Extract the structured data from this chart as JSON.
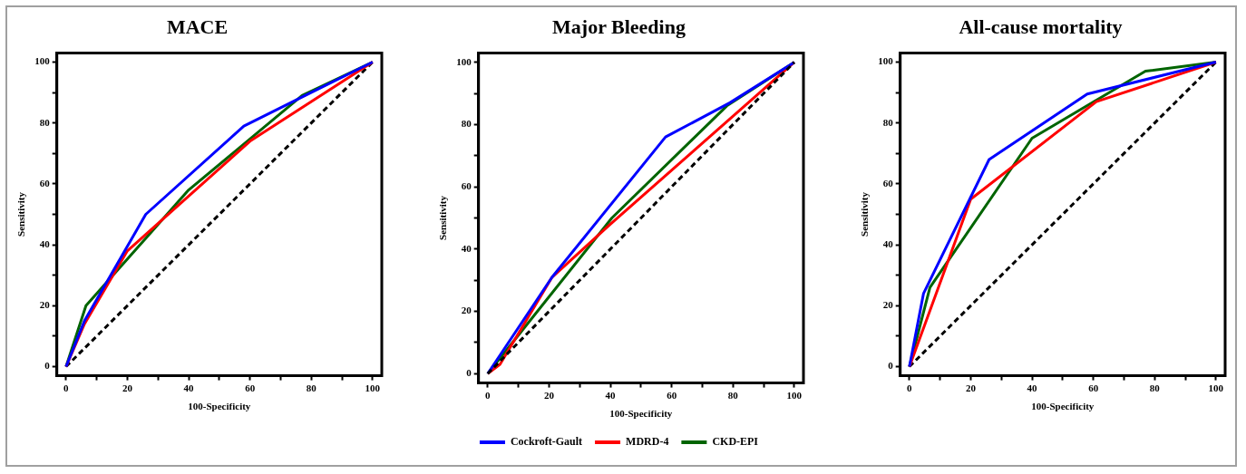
{
  "chart_data": [
    {
      "type": "line",
      "title": "MACE",
      "xlabel": "100-Specificity",
      "ylabel": "Sensitivity",
      "xlim": [
        -3,
        103
      ],
      "ylim": [
        -3,
        103
      ],
      "marker": "none",
      "legend": false,
      "xticks": [
        0,
        {
          "value": 10,
          "label": null
        },
        20,
        {
          "value": 30,
          "label": null
        },
        40,
        {
          "value": 50,
          "label": null
        },
        60,
        {
          "value": 70,
          "label": null
        },
        80,
        {
          "value": 90,
          "label": null
        },
        100
      ],
      "yticks": [
        0,
        {
          "value": 10,
          "label": null
        },
        20,
        {
          "value": 30,
          "label": null
        },
        40,
        {
          "value": 50,
          "label": null
        },
        60,
        {
          "value": 70,
          "label": null
        },
        80,
        {
          "value": 90,
          "label": null
        },
        100
      ],
      "series": [
        {
          "color": "#0000ff",
          "x": [
            0,
            6,
            26,
            58,
            78,
            100
          ],
          "values": [
            0,
            15,
            50,
            79,
            89,
            100
          ]
        },
        {
          "color": "#ff0000",
          "x": [
            0,
            6,
            20,
            60,
            100
          ],
          "values": [
            0,
            14,
            38,
            74,
            100
          ]
        },
        {
          "color": "#006400",
          "x": [
            0,
            6.5,
            40,
            77,
            100
          ],
          "values": [
            0,
            20,
            58,
            89,
            100
          ]
        },
        {
          "color": "#000000",
          "line_style": "dashed",
          "x": [
            0,
            100
          ],
          "values": [
            0,
            100
          ]
        }
      ]
    },
    {
      "type": "line",
      "title": "Major Bleeding",
      "xlabel": "100-Specificity",
      "ylabel": "Sensitivity",
      "xlim": [
        -3,
        103
      ],
      "ylim": [
        -3,
        103
      ],
      "marker": "none",
      "legend": "bottom",
      "xticks": [
        0,
        {
          "value": 10,
          "label": null
        },
        20,
        {
          "value": 30,
          "label": null
        },
        40,
        {
          "value": 50,
          "label": null
        },
        60,
        {
          "value": 70,
          "label": null
        },
        80,
        {
          "value": 90,
          "label": null
        },
        100
      ],
      "yticks": [
        0,
        {
          "value": 10,
          "label": null
        },
        20,
        {
          "value": 30,
          "label": null
        },
        40,
        {
          "value": 50,
          "label": null
        },
        60,
        {
          "value": 70,
          "label": null
        },
        80,
        {
          "value": 90,
          "label": null
        },
        100
      ],
      "series": [
        {
          "name": "Cockroft-Gault",
          "color": "#0000ff",
          "x": [
            0,
            21,
            58,
            79,
            100
          ],
          "values": [
            0,
            31,
            76,
            87,
            100
          ]
        },
        {
          "name": "MDRD-4",
          "color": "#ff0000",
          "x": [
            0,
            4,
            21,
            40,
            100
          ],
          "values": [
            0,
            3,
            31,
            48,
            100
          ]
        },
        {
          "name": "CKD-EPI",
          "color": "#006400",
          "x": [
            0,
            40.5,
            78,
            100
          ],
          "values": [
            0,
            50,
            86,
            100
          ]
        },
        {
          "color": "#000000",
          "line_style": "dashed",
          "x": [
            0,
            100
          ],
          "values": [
            0,
            100
          ]
        }
      ]
    },
    {
      "type": "line",
      "title": "All-cause mortality",
      "xlabel": "100-Specificity",
      "ylabel": "Sensitivity",
      "xlim": [
        -3,
        103
      ],
      "ylim": [
        -3,
        103
      ],
      "marker": "none",
      "legend": false,
      "xticks": [
        0,
        {
          "value": 10,
          "label": null
        },
        20,
        {
          "value": 30,
          "label": null
        },
        40,
        {
          "value": 50,
          "label": null
        },
        60,
        {
          "value": 70,
          "label": null
        },
        80,
        {
          "value": 90,
          "label": null
        },
        100
      ],
      "yticks": [
        0,
        {
          "value": 10,
          "label": null
        },
        20,
        {
          "value": 30,
          "label": null
        },
        40,
        {
          "value": 50,
          "label": null
        },
        60,
        {
          "value": 70,
          "label": null
        },
        80,
        {
          "value": 90,
          "label": null
        },
        100
      ],
      "series": [
        {
          "color": "#0000ff",
          "x": [
            0,
            4.6,
            26,
            58,
            100
          ],
          "values": [
            0,
            24,
            68,
            89.5,
            100
          ]
        },
        {
          "color": "#ff0000",
          "x": [
            0,
            20,
            61,
            100
          ],
          "values": [
            0,
            55,
            87,
            100
          ]
        },
        {
          "color": "#006400",
          "x": [
            0,
            6.7,
            40,
            77,
            100
          ],
          "values": [
            0,
            26,
            75,
            97,
            100
          ]
        },
        {
          "color": "#000000",
          "line_style": "dashed",
          "x": [
            0,
            100
          ],
          "values": [
            0,
            100
          ]
        }
      ]
    }
  ]
}
